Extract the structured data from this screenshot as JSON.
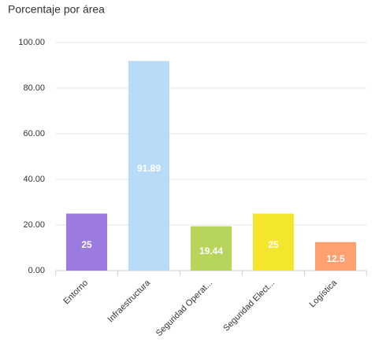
{
  "chart_data": {
    "type": "bar",
    "title": "Porcentaje por área",
    "categories": [
      "Entorno",
      "Infraestructura",
      "Seguridad Operat...",
      "Seguridad Elect...",
      "Logística"
    ],
    "values": [
      25,
      91.89,
      19.44,
      25,
      12.5
    ],
    "colors": [
      "#9b7be0",
      "#b8dcf8",
      "#b5d55b",
      "#f4e62c",
      "#ffa071"
    ],
    "ylim": [
      0,
      100
    ],
    "yticks": [
      {
        "value": 0,
        "label": "0.00"
      },
      {
        "value": 20,
        "label": "20.00"
      },
      {
        "value": 40,
        "label": "40.00"
      },
      {
        "value": 60,
        "label": "60.00"
      },
      {
        "value": 80,
        "label": "80.00"
      },
      {
        "value": 100,
        "label": "100.00"
      }
    ],
    "grid": true
  }
}
